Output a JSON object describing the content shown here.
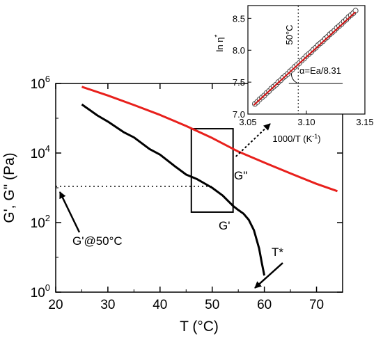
{
  "colors": {
    "G_double_prime": "#e8201c",
    "G_prime": "#000000",
    "inset_fit": "#d01010",
    "inset_points": "#444444"
  },
  "chart_data": [
    {
      "type": "line",
      "xlabel": "T (°C)",
      "ylabel": "G', G\" (Pa)",
      "xlim": [
        20,
        75
      ],
      "ylim": [
        1,
        1000000
      ],
      "yscale": "log",
      "xticks": [
        "20",
        "30",
        "40",
        "50",
        "60",
        "70"
      ],
      "yticks": [
        {
          "base": "10",
          "exp": "0"
        },
        {
          "base": "10",
          "exp": "2"
        },
        {
          "base": "10",
          "exp": "4"
        },
        {
          "base": "10",
          "exp": "6"
        }
      ],
      "series": [
        {
          "name": "G\"",
          "x": [
            25,
            30,
            35,
            40,
            45,
            50,
            55,
            60,
            65,
            70,
            74
          ],
          "y": [
            800000,
            450000,
            240000,
            125000,
            60000,
            27000,
            11000,
            5300,
            2600,
            1300,
            800
          ]
        },
        {
          "name": "G'",
          "x": [
            25,
            28,
            30,
            33,
            35,
            38,
            40,
            43,
            45,
            47,
            50,
            52,
            54,
            55,
            56,
            57,
            58,
            59,
            59.5,
            60
          ],
          "y": [
            250000,
            120000,
            80000,
            40000,
            28000,
            13000,
            9000,
            4000,
            2400,
            1800,
            1000,
            600,
            300,
            230,
            180,
            120,
            60,
            18,
            7,
            3
          ]
        }
      ],
      "annotations": {
        "g_double_prime_label": "G\"",
        "g_prime_label": "G'",
        "g_at_50": "G'@50°C",
        "t_star": "T*"
      },
      "reference_level": 1100,
      "zoom_box": {
        "x": [
          46,
          54
        ],
        "y": [
          200,
          50000
        ]
      }
    },
    {
      "type": "scatter",
      "xlabel_text": "1000/T (K",
      "xlabel_exp": "-1",
      "xlabel_close": ")",
      "ylabel_text": "ln η",
      "ylabel_sup": "*",
      "xlim": [
        3.05,
        3.15
      ],
      "ylim": [
        7.0,
        8.7
      ],
      "xticks": [
        "3.05",
        "3.10",
        "3.15"
      ],
      "yticks": [
        "7.0",
        "7.5",
        "8.0",
        "8.5"
      ],
      "vline_x": 3.093,
      "vline_label": "50°C",
      "slope_label": "α=Ea/8.31",
      "fit": {
        "x": [
          3.055,
          3.142
        ],
        "y": [
          7.14,
          8.6
        ]
      },
      "x": [
        3.056,
        3.058,
        3.06,
        3.062,
        3.064,
        3.066,
        3.068,
        3.07,
        3.072,
        3.074,
        3.076,
        3.078,
        3.08,
        3.082,
        3.084,
        3.086,
        3.088,
        3.09,
        3.092,
        3.094,
        3.096,
        3.098,
        3.1,
        3.102,
        3.104,
        3.106,
        3.108,
        3.11,
        3.112,
        3.114,
        3.116,
        3.118,
        3.12,
        3.122,
        3.124,
        3.126,
        3.128,
        3.13,
        3.132,
        3.134,
        3.136,
        3.138,
        3.14,
        3.142
      ],
      "y": [
        7.16,
        7.19,
        7.23,
        7.26,
        7.29,
        7.33,
        7.36,
        7.4,
        7.43,
        7.46,
        7.5,
        7.53,
        7.57,
        7.6,
        7.63,
        7.67,
        7.7,
        7.74,
        7.77,
        7.8,
        7.84,
        7.87,
        7.91,
        7.94,
        7.97,
        8.01,
        8.04,
        8.08,
        8.11,
        8.14,
        8.18,
        8.21,
        8.25,
        8.28,
        8.31,
        8.35,
        8.38,
        8.41,
        8.45,
        8.48,
        8.52,
        8.55,
        8.58,
        8.62
      ]
    }
  ]
}
